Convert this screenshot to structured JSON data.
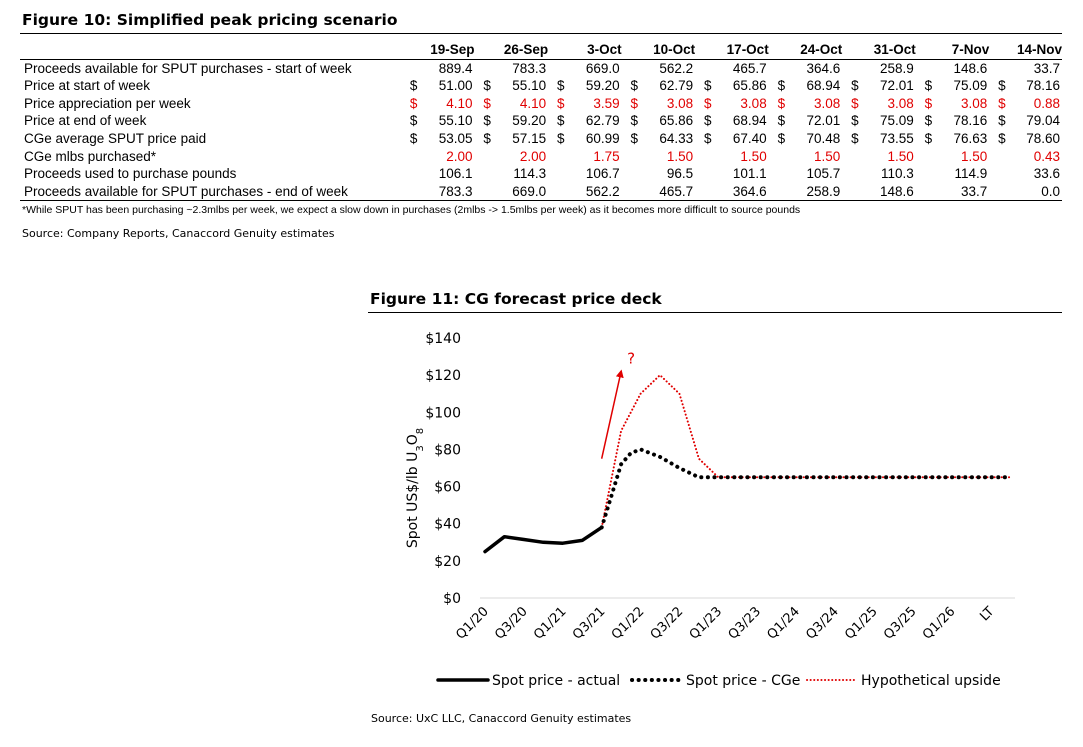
{
  "figure10": {
    "title": "Figure 10: Simplified peak pricing scenario",
    "columns": [
      "19-Sep",
      "26-Sep",
      "3-Oct",
      "10-Oct",
      "17-Oct",
      "24-Oct",
      "31-Oct",
      "7-Nov",
      "14-Nov"
    ],
    "currency_symbol": "$",
    "rows": [
      {
        "label": "Proceeds available for SPUT purchases - start of week",
        "currency": false,
        "red": false,
        "values": [
          "889.4",
          "783.3",
          "669.0",
          "562.2",
          "465.7",
          "364.6",
          "258.9",
          "148.6",
          "33.7"
        ]
      },
      {
        "label": "Price at start of week",
        "currency": true,
        "red": false,
        "values": [
          "51.00",
          "55.10",
          "59.20",
          "62.79",
          "65.86",
          "68.94",
          "72.01",
          "75.09",
          "78.16"
        ]
      },
      {
        "label": "Price appreciation per week",
        "currency": true,
        "red": true,
        "values": [
          "4.10",
          "4.10",
          "3.59",
          "3.08",
          "3.08",
          "3.08",
          "3.08",
          "3.08",
          "0.88"
        ]
      },
      {
        "label": "Price at end of week",
        "currency": true,
        "red": false,
        "values": [
          "55.10",
          "59.20",
          "62.79",
          "65.86",
          "68.94",
          "72.01",
          "75.09",
          "78.16",
          "79.04"
        ]
      },
      {
        "label": "CGe average SPUT price paid",
        "currency": true,
        "red": false,
        "values": [
          "53.05",
          "57.15",
          "60.99",
          "64.33",
          "67.40",
          "70.48",
          "73.55",
          "76.63",
          "78.60"
        ]
      },
      {
        "label": "CGe mlbs purchased*",
        "currency": false,
        "red": true,
        "values": [
          "2.00",
          "2.00",
          "1.75",
          "1.50",
          "1.50",
          "1.50",
          "1.50",
          "1.50",
          "0.43"
        ]
      },
      {
        "label": "Proceeds used to purchase pounds",
        "currency": false,
        "red": false,
        "values": [
          "106.1",
          "114.3",
          "106.7",
          "96.5",
          "101.1",
          "105.7",
          "110.3",
          "114.9",
          "33.6"
        ]
      },
      {
        "label": "Proceeds available for SPUT purchases - end of week",
        "currency": false,
        "red": false,
        "values": [
          "783.3",
          "669.0",
          "562.2",
          "465.7",
          "364.6",
          "258.9",
          "148.6",
          "33.7",
          "0.0"
        ]
      }
    ],
    "footnote": "*While SPUT has been purchasing ~2.3mlbs per week, we expect a slow down in purchases (2mlbs -> 1.5mlbs per week) as it becomes more difficult to source pounds",
    "source": "Source: Company Reports, Canaccord Genuity estimates"
  },
  "figure11": {
    "title": "Figure 11: CG forecast price deck",
    "source": "Source: UxC LLC, Canaccord Genuity estimates",
    "annotation": "?"
  },
  "chart_data": {
    "type": "line",
    "title": "Figure 11: CG forecast price deck",
    "ylabel": "Spot US$/lb U3O8",
    "ylabel_parts": {
      "main": "Spot US$/lb U",
      "sub1": "3",
      "mid": "O",
      "sub2": "8"
    },
    "ylim": [
      0,
      140
    ],
    "yticks": [
      0,
      20,
      40,
      60,
      80,
      100,
      120,
      140
    ],
    "ytick_labels": [
      "$0",
      "$20",
      "$40",
      "$60",
      "$80",
      "$100",
      "$120",
      "$140"
    ],
    "xlabels": [
      "Q1/20",
      "Q3/20",
      "Q1/21",
      "Q3/21",
      "Q1/22",
      "Q3/22",
      "Q1/23",
      "Q3/23",
      "Q1/24",
      "Q3/24",
      "Q1/25",
      "Q3/25",
      "Q1/26",
      "LT"
    ],
    "legend_position": "bottom",
    "series": [
      {
        "name": "Spot price - actual",
        "style": "solid",
        "color": "#000000",
        "points": [
          [
            0,
            25
          ],
          [
            0.5,
            33
          ],
          [
            1,
            31.5
          ],
          [
            1.5,
            30
          ],
          [
            2,
            29.5
          ],
          [
            2.5,
            31
          ],
          [
            3,
            38
          ]
        ]
      },
      {
        "name": "Spot price - CGe",
        "style": "dotted",
        "color": "#000000",
        "points": [
          [
            3,
            38
          ],
          [
            3.25,
            55
          ],
          [
            3.5,
            72
          ],
          [
            3.75,
            78
          ],
          [
            4,
            80
          ],
          [
            4.5,
            76
          ],
          [
            5,
            70
          ],
          [
            5.5,
            65
          ],
          [
            13.5,
            65
          ]
        ]
      },
      {
        "name": "Hypothetical upside",
        "style": "dotted",
        "color": "#e00000",
        "points": [
          [
            3,
            38
          ],
          [
            3.5,
            90
          ],
          [
            4,
            110
          ],
          [
            4.5,
            120
          ],
          [
            5,
            110
          ],
          [
            5.5,
            75
          ],
          [
            6,
            65
          ],
          [
            13.5,
            65
          ]
        ]
      }
    ],
    "annotation_arrow": {
      "from": [
        3,
        75
      ],
      "to": [
        3.5,
        122
      ],
      "color": "#e00000",
      "label": "?"
    }
  }
}
